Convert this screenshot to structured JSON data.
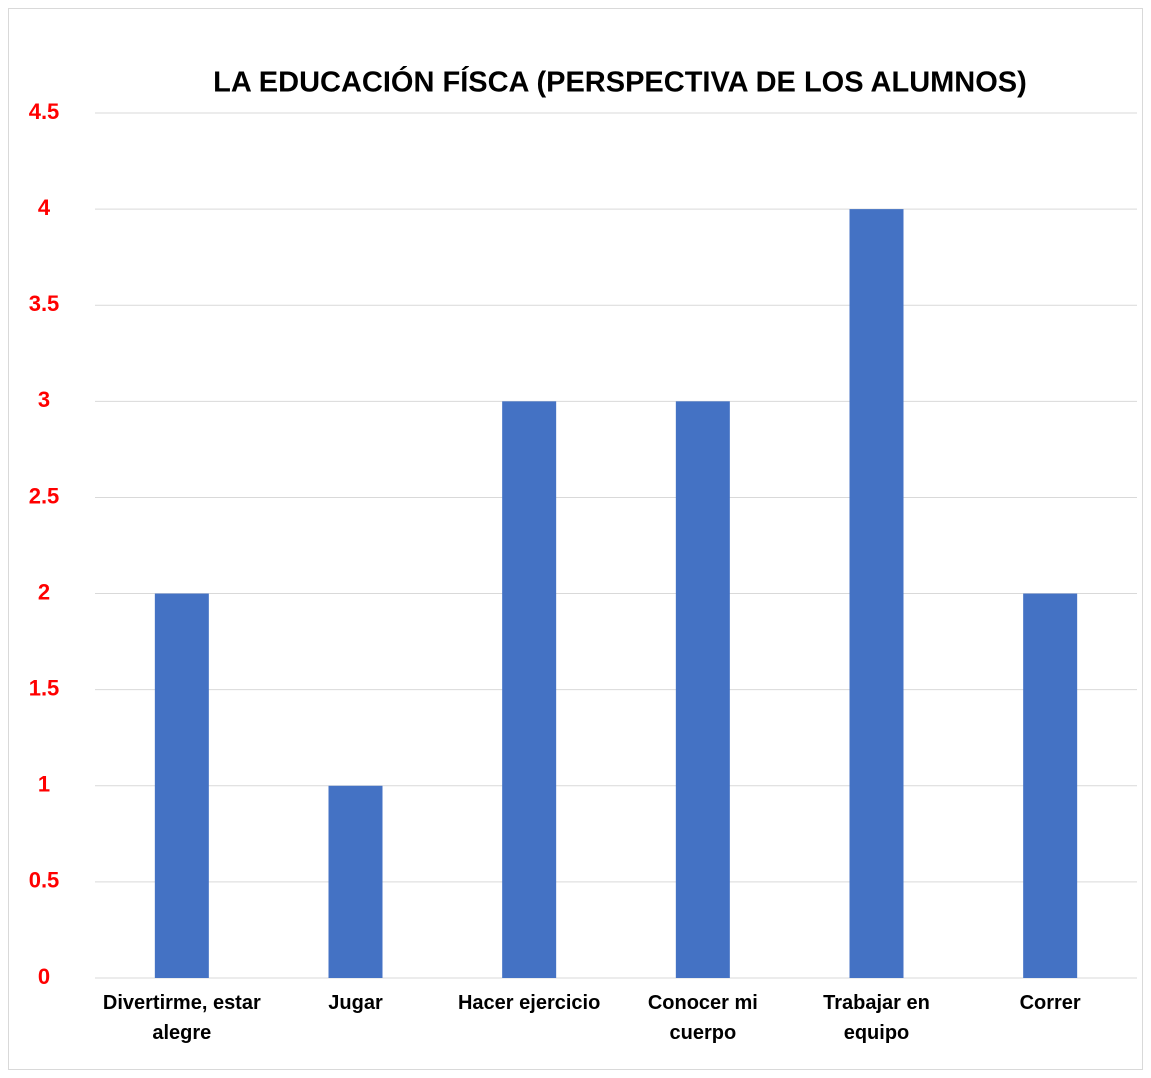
{
  "chart_data": {
    "type": "bar",
    "title": "LA EDUCACIÓN FÍSCA (PERSPECTIVA DE LOS ALUMNOS)",
    "categories": [
      "Divertirme, estar alegre",
      "Jugar",
      "Hacer ejercicio",
      "Conocer mi cuerpo",
      "Trabajar en equipo",
      "Correr"
    ],
    "values": [
      2,
      1,
      3,
      3,
      4,
      2
    ],
    "color": "#4472c4",
    "ylim": [
      0,
      4.5
    ],
    "yticks": [
      0,
      0.5,
      1,
      1.5,
      2,
      2.5,
      3,
      3.5,
      4,
      4.5
    ],
    "grid": true
  }
}
